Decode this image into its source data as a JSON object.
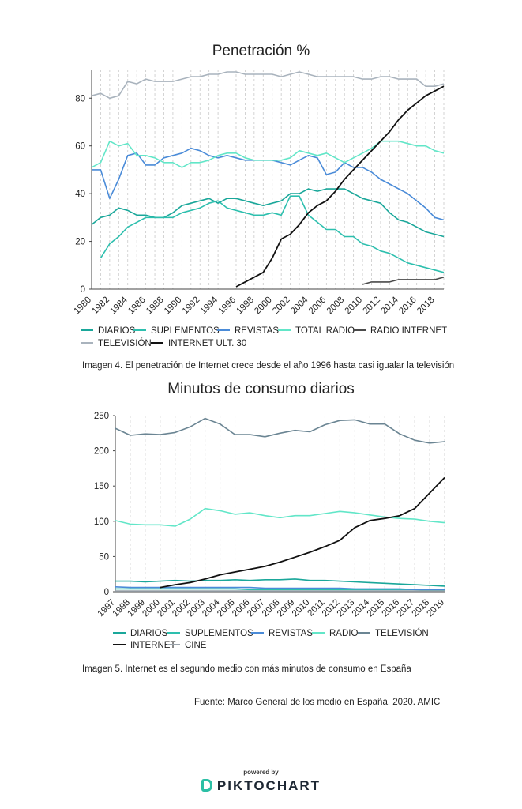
{
  "chart_data": [
    {
      "type": "line",
      "title": "Penetración %",
      "xlabel": "",
      "ylabel": "",
      "xlim": [
        1980,
        2019
      ],
      "ylim": [
        0,
        92
      ],
      "yticks": [
        0,
        20,
        40,
        60,
        80
      ],
      "xticks": [
        "1980",
        "1982",
        "1984",
        "1986",
        "1988",
        "1990",
        "1992",
        "1994",
        "1996",
        "1998",
        "2000",
        "2002",
        "2004",
        "2006",
        "2008",
        "2010",
        "2012",
        "2014",
        "2016",
        "2018"
      ],
      "grid": "vertical-dashed",
      "legend_position": "bottom",
      "x": [
        1980,
        1981,
        1982,
        1983,
        1984,
        1985,
        1986,
        1987,
        1988,
        1989,
        1990,
        1991,
        1992,
        1993,
        1994,
        1995,
        1996,
        1997,
        1998,
        1999,
        2000,
        2001,
        2002,
        2003,
        2004,
        2005,
        2006,
        2007,
        2008,
        2009,
        2010,
        2011,
        2012,
        2013,
        2014,
        2015,
        2016,
        2017,
        2018,
        2019
      ],
      "series": [
        {
          "name": "DIARIOS",
          "color": "#1aa79a",
          "values": [
            27,
            30,
            31,
            34,
            33,
            31,
            31,
            30,
            30,
            32,
            35,
            36,
            37,
            38,
            36,
            38,
            38,
            37,
            36,
            35,
            36,
            37,
            40,
            40,
            42,
            41,
            42,
            42,
            42,
            40,
            38,
            37,
            36,
            32,
            29,
            28,
            26,
            24,
            23,
            22
          ]
        },
        {
          "name": "SUPLEMENTOS",
          "color": "#2dbfae",
          "values": [
            null,
            13,
            19,
            22,
            26,
            28,
            30,
            30,
            30,
            30,
            32,
            33,
            34,
            36,
            37,
            34,
            33,
            32,
            31,
            31,
            32,
            31,
            39,
            39,
            31,
            28,
            25,
            25,
            22,
            22,
            19,
            18,
            16,
            15,
            13,
            11,
            10,
            9,
            8,
            7
          ]
        },
        {
          "name": "REVISTAS",
          "color": "#4a8bd8",
          "values": [
            50,
            50,
            38,
            46,
            56,
            57,
            52,
            52,
            55,
            56,
            57,
            59,
            58,
            56,
            55,
            56,
            55,
            54,
            54,
            54,
            54,
            53,
            52,
            54,
            56,
            55,
            48,
            49,
            53,
            51,
            51,
            49,
            46,
            44,
            42,
            40,
            37,
            34,
            30,
            29
          ]
        },
        {
          "name": "TOTAL RADIO",
          "color": "#62e6c8",
          "values": [
            51,
            53,
            62,
            60,
            61,
            56,
            56,
            55,
            53,
            53,
            51,
            53,
            53,
            54,
            56,
            57,
            57,
            55,
            54,
            54,
            54,
            54,
            55,
            58,
            57,
            56,
            57,
            55,
            53,
            55,
            57,
            59,
            62,
            62,
            62,
            61,
            60,
            60,
            58,
            57
          ]
        },
        {
          "name": "RADIO INTERNET",
          "color": "#4a4a4a",
          "values": [
            null,
            null,
            null,
            null,
            null,
            null,
            null,
            null,
            null,
            null,
            null,
            null,
            null,
            null,
            null,
            null,
            null,
            null,
            null,
            null,
            null,
            null,
            null,
            null,
            null,
            null,
            null,
            null,
            null,
            null,
            2,
            3,
            3,
            3,
            4,
            4,
            4,
            4,
            4,
            5
          ]
        },
        {
          "name": "TELEVISIÓN",
          "color": "#a9b3bd",
          "values": [
            81,
            82,
            80,
            81,
            87,
            86,
            88,
            87,
            87,
            87,
            88,
            89,
            89,
            90,
            90,
            91,
            91,
            90,
            90,
            90,
            90,
            89,
            90,
            91,
            90,
            89,
            89,
            89,
            89,
            89,
            88,
            88,
            89,
            89,
            88,
            88,
            88,
            85,
            85,
            86
          ]
        },
        {
          "name": "INTERNET ULT. 30",
          "color": "#111111",
          "values": [
            null,
            null,
            null,
            null,
            null,
            null,
            null,
            null,
            null,
            null,
            null,
            null,
            null,
            null,
            null,
            null,
            1,
            3,
            5,
            7,
            13,
            21,
            23,
            27,
            32,
            35,
            37,
            41,
            46,
            50,
            54,
            58,
            62,
            66,
            71,
            75,
            78,
            81,
            83,
            85
          ]
        }
      ]
    },
    {
      "type": "line",
      "title": "Minutos de consumo diarios",
      "xlabel": "",
      "ylabel": "",
      "xlim": [
        1997,
        2019
      ],
      "ylim": [
        0,
        250
      ],
      "yticks": [
        0,
        50,
        100,
        150,
        200,
        250
      ],
      "xticks": [
        "1997",
        "1998",
        "1999",
        "2000",
        "2001",
        "2002",
        "2003",
        "2004",
        "2005",
        "2006",
        "2007",
        "2008",
        "2009",
        "2010",
        "2011",
        "2012",
        "2013",
        "2014",
        "2015",
        "2016",
        "2017",
        "2018",
        "2019"
      ],
      "grid": "vertical-dashed",
      "legend_position": "bottom",
      "x": [
        1997,
        1998,
        1999,
        2000,
        2001,
        2002,
        2003,
        2004,
        2005,
        2006,
        2007,
        2008,
        2009,
        2010,
        2011,
        2012,
        2013,
        2014,
        2015,
        2016,
        2017,
        2018,
        2019
      ],
      "series": [
        {
          "name": "DIARIOS",
          "color": "#1aa79a",
          "values": [
            15,
            15,
            14,
            15,
            16,
            15,
            16,
            16,
            17,
            16,
            17,
            17,
            18,
            16,
            16,
            15,
            14,
            13,
            12,
            11,
            10,
            9,
            8
          ]
        },
        {
          "name": "SUPLEMENTOS",
          "color": "#2dbfae",
          "values": [
            4,
            4,
            4,
            4,
            4,
            4,
            4,
            4,
            4,
            3,
            3,
            3,
            3,
            3,
            3,
            3,
            3,
            3,
            3,
            3,
            3,
            2,
            2
          ]
        },
        {
          "name": "REVISTAS",
          "color": "#4a8bd8",
          "values": [
            7,
            6,
            6,
            6,
            6,
            6,
            6,
            6,
            6,
            6,
            5,
            5,
            5,
            5,
            5,
            5,
            4,
            4,
            4,
            4,
            3,
            3,
            3
          ]
        },
        {
          "name": "RADIO",
          "color": "#62e6c8",
          "values": [
            101,
            96,
            95,
            95,
            93,
            103,
            118,
            115,
            110,
            112,
            108,
            105,
            108,
            108,
            111,
            114,
            112,
            109,
            106,
            104,
            103,
            100,
            98
          ]
        },
        {
          "name": "TELEVISIÓN",
          "color": "#6b8593",
          "values": [
            232,
            222,
            224,
            223,
            226,
            234,
            246,
            238,
            223,
            223,
            220,
            225,
            229,
            227,
            237,
            243,
            244,
            238,
            238,
            224,
            215,
            211,
            213
          ]
        },
        {
          "name": "INTERNET",
          "color": "#111111",
          "values": [
            null,
            null,
            null,
            6,
            10,
            13,
            18,
            24,
            28,
            32,
            36,
            42,
            49,
            56,
            64,
            73,
            91,
            101,
            104,
            108,
            118,
            140,
            162
          ]
        },
        {
          "name": "CINE",
          "color": "#9aa3ab",
          "values": [
            1,
            1,
            1,
            1,
            1,
            1,
            1,
            1,
            1,
            1,
            1,
            1,
            1,
            1,
            1,
            1,
            1,
            1,
            1,
            1,
            1,
            1,
            1
          ]
        }
      ]
    }
  ],
  "captions": {
    "caption1": "Imagen 4. El penetración de Internet crece desde el año 1996 hasta casi igualar la televisión",
    "caption2": "Imagen 5. Internet es el segundo medio con más minutos de consumo en España",
    "source": "Fuente: Marco General de los medio en España. 2020. AMIC"
  },
  "footer": {
    "powered_by": "powered by",
    "brand": "PIKTOCHART",
    "brand_color": "#2bbfa5"
  }
}
